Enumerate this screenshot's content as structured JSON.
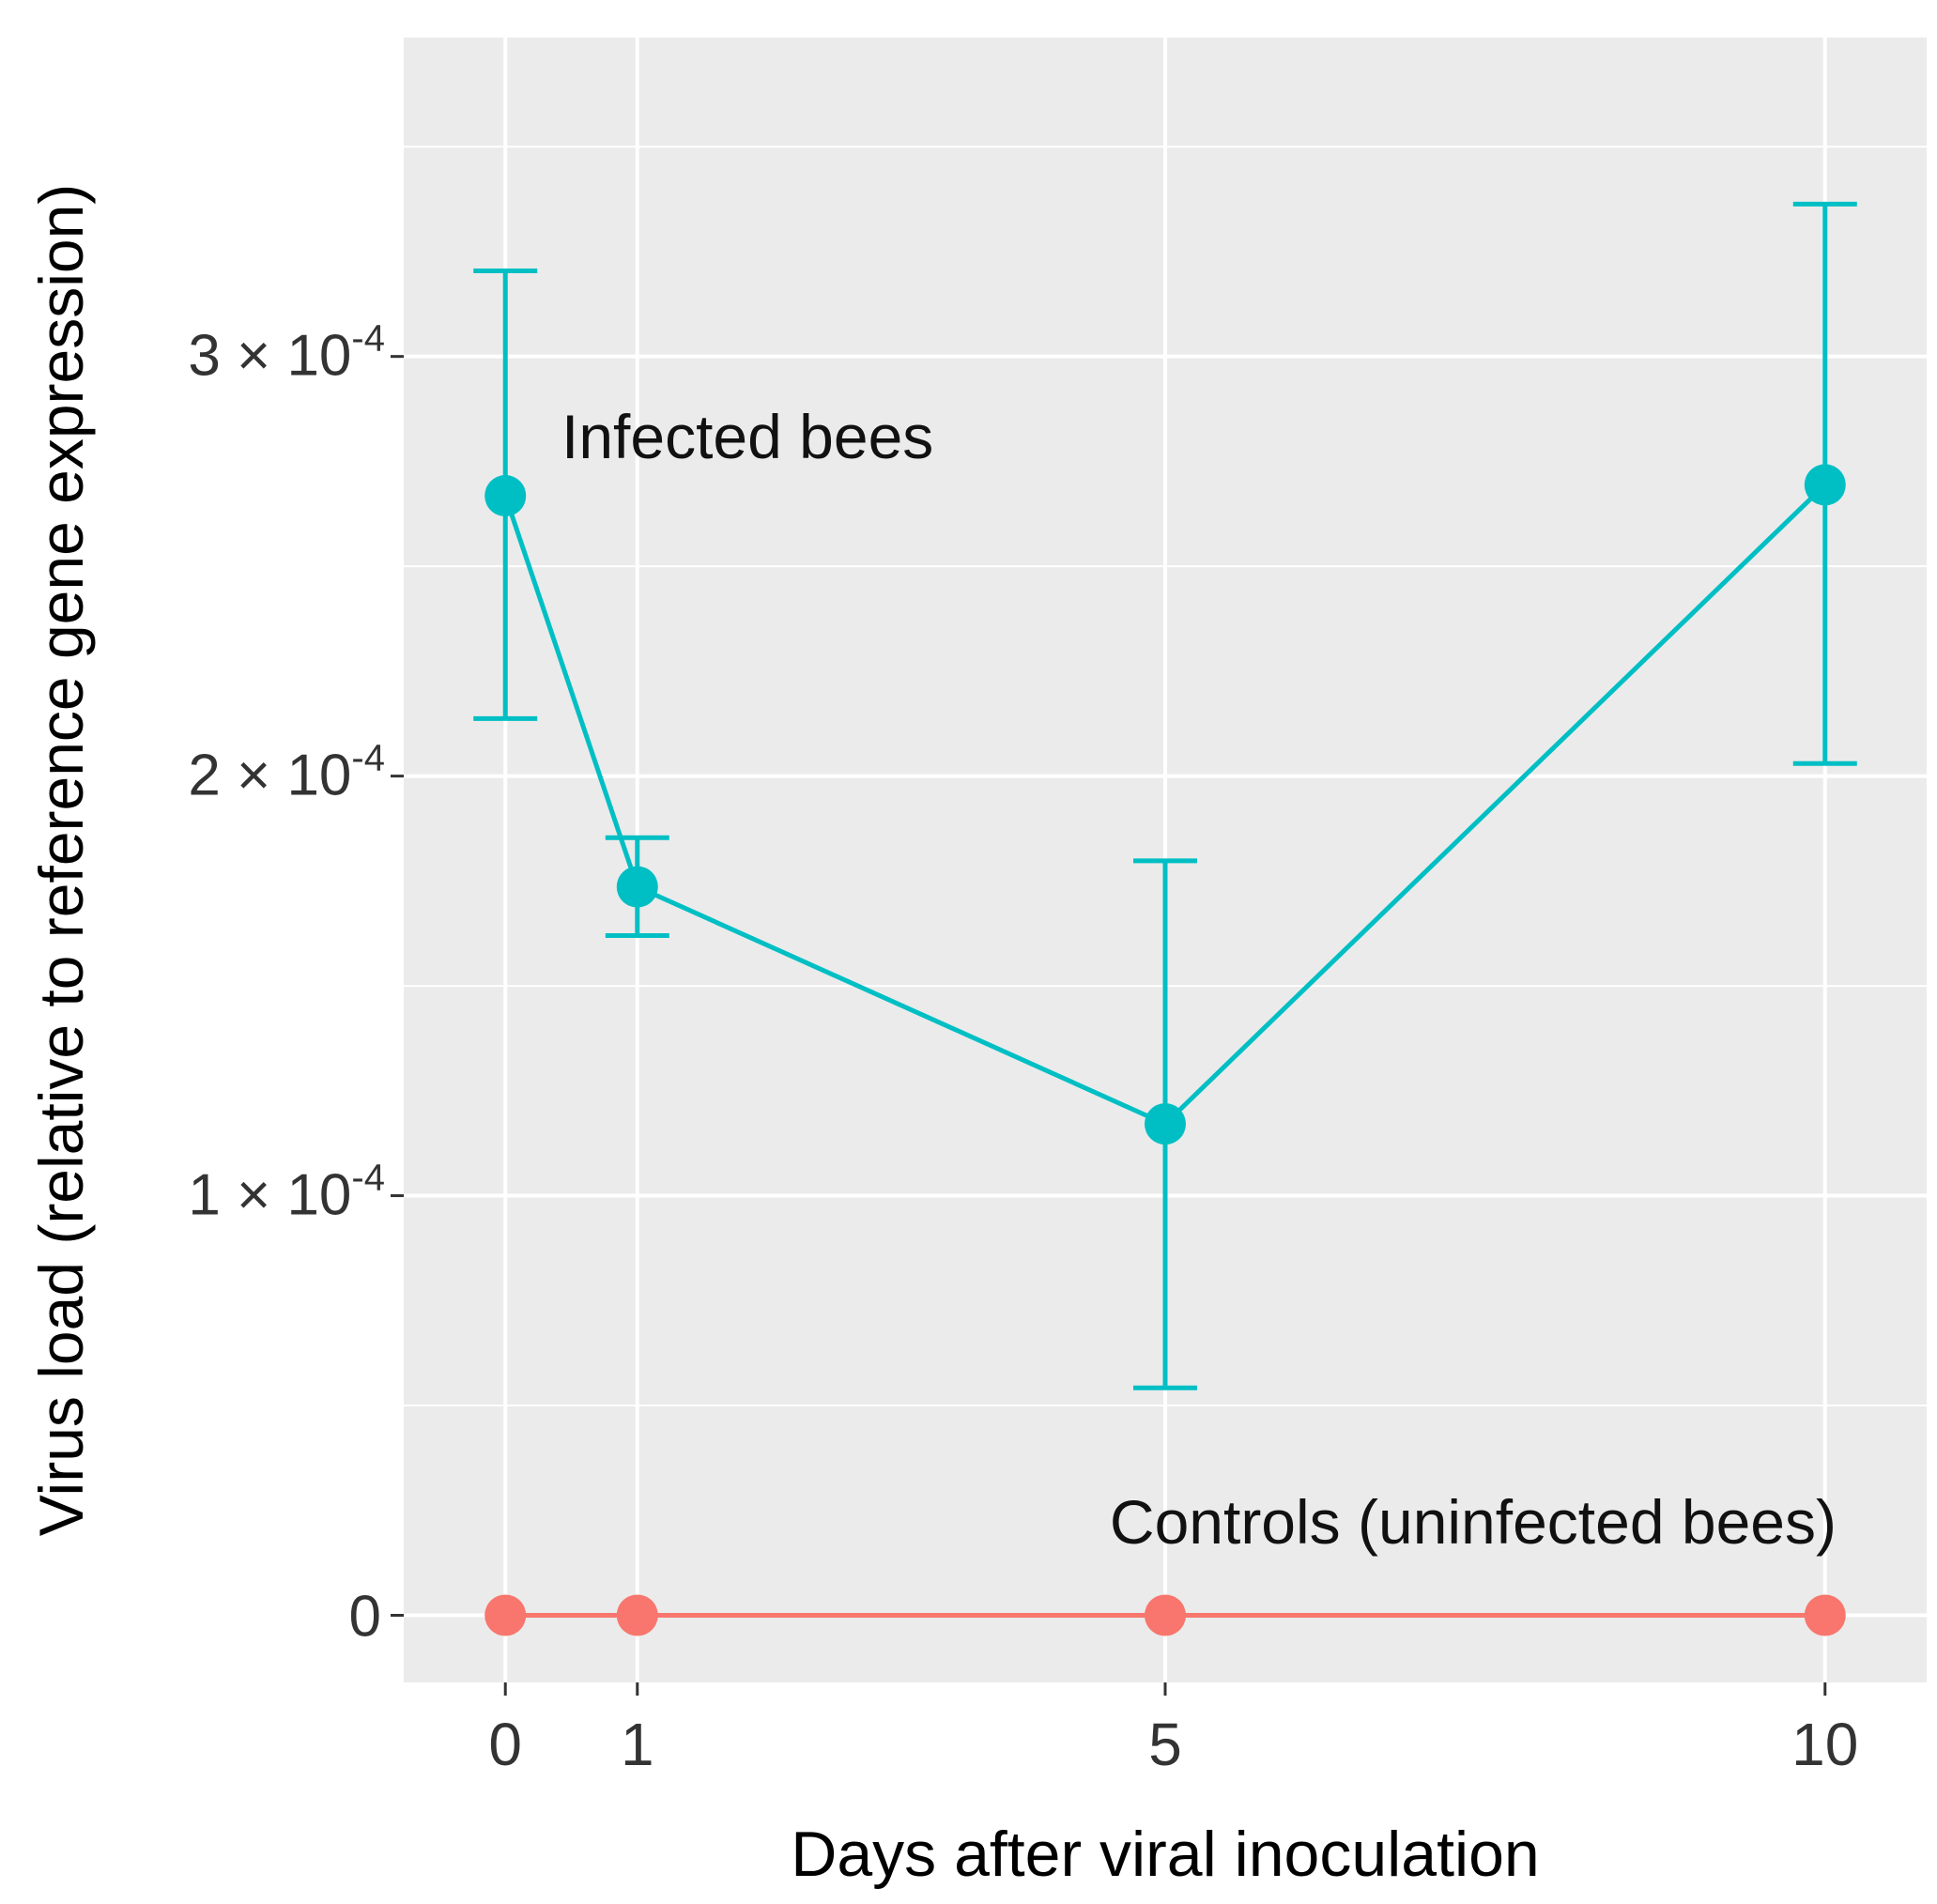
{
  "chart_data": {
    "type": "line",
    "title": "",
    "xlabel": "Days after viral inoculation",
    "ylabel": "Virus load (relative to reference gene expression)",
    "x": [
      0,
      1,
      5,
      10
    ],
    "xlim": [
      -0.77,
      10.77
    ],
    "ylim": [
      -1.6e-05,
      0.000376
    ],
    "x_ticks": [
      {
        "value": 0,
        "label": "0"
      },
      {
        "value": 1,
        "label": "1"
      },
      {
        "value": 5,
        "label": "5"
      },
      {
        "value": 10,
        "label": "10"
      }
    ],
    "y_ticks": [
      {
        "value": 0,
        "label": "0"
      },
      {
        "value": 0.0001,
        "coef": "1 × 10",
        "exp": "-4"
      },
      {
        "value": 0.0002,
        "coef": "2 × 10",
        "exp": "-4"
      },
      {
        "value": 0.0003,
        "coef": "3 × 10",
        "exp": "-4"
      }
    ],
    "y_minor_gridlines": [
      5e-05,
      0.00015,
      0.00025,
      0.00035
    ],
    "grid": true,
    "background_color": "#EBEBEB",
    "series": [
      {
        "name": "Controls (uninfected bees)",
        "color": "#F8766D",
        "values": [
          0,
          0,
          0,
          0
        ]
      },
      {
        "name": "Infected bees",
        "color": "#00BFC4",
        "values": [
          0.0002668,
          0.0001736,
          0.0001171,
          0.0002694
        ],
        "error_lower": [
          0.0002137,
          0.000162,
          5.42e-05,
          0.000203
        ],
        "error_upper": [
          0.0003204,
          0.0001853,
          0.0001798,
          0.0003363
        ]
      }
    ],
    "annotations": [
      {
        "text": "Infected bees",
        "series": "Infected bees"
      },
      {
        "text": "Controls (uninfected bees)",
        "series": "Controls (uninfected bees)"
      }
    ]
  }
}
